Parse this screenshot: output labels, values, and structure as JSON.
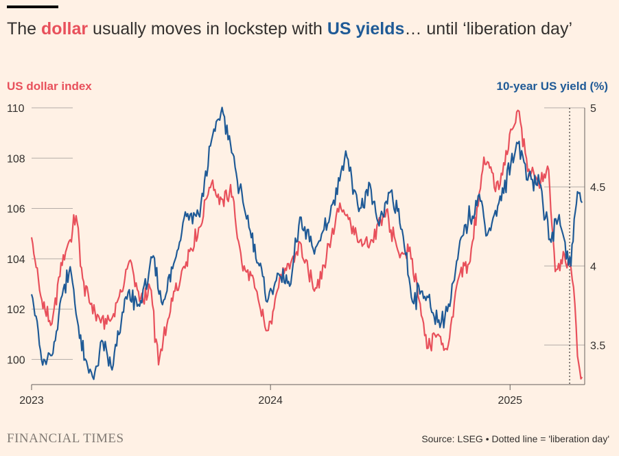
{
  "title": {
    "prefix": "The ",
    "highlight1": "dollar",
    "middle": " usually moves in lockstep with ",
    "highlight2": "US yields",
    "suffix": "… until ‘liberation day’"
  },
  "brand": "FINANCIAL TIMES",
  "source": "Source: LSEG • Dotted line = 'liberation day'",
  "colors": {
    "dollar": "#e8505b",
    "yield": "#1f5a96",
    "background": "#fff1e5",
    "grid": "#b3aca7"
  },
  "chart_data": {
    "type": "line",
    "x_axis": {
      "ticks": [
        "2023",
        "2024",
        "2025"
      ],
      "range": [
        "2023-01-01",
        "2025-04-25"
      ]
    },
    "left_axis": {
      "label": "US dollar index",
      "range": [
        99,
        110
      ],
      "ticks": [
        100,
        102,
        104,
        106,
        108,
        110
      ],
      "tick_labels": [
        "100",
        "102",
        "104",
        "106",
        "108",
        "110"
      ]
    },
    "right_axis": {
      "label": "10-year US yield (%)",
      "range": [
        3.25,
        5.0
      ],
      "ticks": [
        3.5,
        4.0,
        4.5,
        5.0
      ],
      "tick_labels": [
        "3.5",
        "4",
        "4.5",
        "5"
      ]
    },
    "annotation": {
      "type": "vertical-dotted-line",
      "date": "2025-04-02",
      "label": "liberation day"
    },
    "series": [
      {
        "name": "dollar",
        "axis": "left",
        "points": [
          [
            "2023-01-01",
            104.9
          ],
          [
            "2023-01-15",
            102.5
          ],
          [
            "2023-02-01",
            101.3
          ],
          [
            "2023-02-15",
            103.8
          ],
          [
            "2023-03-01",
            104.8
          ],
          [
            "2023-03-10",
            105.8
          ],
          [
            "2023-03-20",
            103.2
          ],
          [
            "2023-04-01",
            102.2
          ],
          [
            "2023-04-15",
            101.6
          ],
          [
            "2023-05-01",
            101.5
          ],
          [
            "2023-05-15",
            102.5
          ],
          [
            "2023-06-01",
            104.0
          ],
          [
            "2023-06-15",
            102.3
          ],
          [
            "2023-07-01",
            102.9
          ],
          [
            "2023-07-14",
            99.8
          ],
          [
            "2023-08-01",
            102.0
          ],
          [
            "2023-08-20",
            103.6
          ],
          [
            "2023-09-15",
            105.3
          ],
          [
            "2023-10-03",
            107.1
          ],
          [
            "2023-10-20",
            106.2
          ],
          [
            "2023-11-01",
            106.8
          ],
          [
            "2023-11-20",
            103.6
          ],
          [
            "2023-12-01",
            103.4
          ],
          [
            "2023-12-27",
            101.0
          ],
          [
            "2024-01-15",
            103.2
          ],
          [
            "2024-02-01",
            103.8
          ],
          [
            "2024-02-15",
            104.6
          ],
          [
            "2024-03-08",
            102.7
          ],
          [
            "2024-04-01",
            104.6
          ],
          [
            "2024-04-16",
            106.2
          ],
          [
            "2024-05-01",
            105.6
          ],
          [
            "2024-05-15",
            104.6
          ],
          [
            "2024-06-01",
            104.6
          ],
          [
            "2024-06-26",
            105.9
          ],
          [
            "2024-07-15",
            104.2
          ],
          [
            "2024-08-01",
            104.3
          ],
          [
            "2024-08-15",
            102.5
          ],
          [
            "2024-08-27",
            100.5
          ],
          [
            "2024-09-15",
            101.0
          ],
          [
            "2024-09-27",
            100.4
          ],
          [
            "2024-10-15",
            103.3
          ],
          [
            "2024-11-01",
            104.0
          ],
          [
            "2024-11-22",
            107.9
          ],
          [
            "2024-12-15",
            106.8
          ],
          [
            "2025-01-13",
            110.0
          ],
          [
            "2025-01-28",
            107.5
          ],
          [
            "2025-02-15",
            106.9
          ],
          [
            "2025-03-01",
            107.5
          ],
          [
            "2025-03-11",
            103.5
          ],
          [
            "2025-03-25",
            104.2
          ],
          [
            "2025-04-02",
            103.8
          ],
          [
            "2025-04-08",
            103.0
          ],
          [
            "2025-04-14",
            100.1
          ],
          [
            "2025-04-21",
            99.3
          ]
        ]
      },
      {
        "name": "10-year US yield",
        "axis": "right",
        "points": [
          [
            "2023-01-01",
            3.85
          ],
          [
            "2023-01-18",
            3.37
          ],
          [
            "2023-02-01",
            3.42
          ],
          [
            "2023-02-15",
            3.8
          ],
          [
            "2023-03-01",
            4.0
          ],
          [
            "2023-03-10",
            3.7
          ],
          [
            "2023-03-24",
            3.38
          ],
          [
            "2023-04-06",
            3.3
          ],
          [
            "2023-04-20",
            3.52
          ],
          [
            "2023-05-04",
            3.34
          ],
          [
            "2023-05-25",
            3.82
          ],
          [
            "2023-06-15",
            3.75
          ],
          [
            "2023-07-06",
            4.05
          ],
          [
            "2023-07-20",
            3.76
          ],
          [
            "2023-08-08",
            4.02
          ],
          [
            "2023-08-22",
            4.32
          ],
          [
            "2023-09-15",
            4.33
          ],
          [
            "2023-10-03",
            4.8
          ],
          [
            "2023-10-19",
            4.99
          ],
          [
            "2023-11-01",
            4.75
          ],
          [
            "2023-11-20",
            4.4
          ],
          [
            "2023-12-01",
            4.22
          ],
          [
            "2023-12-27",
            3.79
          ],
          [
            "2024-01-15",
            3.95
          ],
          [
            "2024-02-01",
            3.88
          ],
          [
            "2024-02-15",
            4.3
          ],
          [
            "2024-03-08",
            4.09
          ],
          [
            "2024-04-01",
            4.33
          ],
          [
            "2024-04-25",
            4.7
          ],
          [
            "2024-05-15",
            4.35
          ],
          [
            "2024-06-01",
            4.5
          ],
          [
            "2024-06-15",
            4.23
          ],
          [
            "2024-07-01",
            4.48
          ],
          [
            "2024-07-20",
            4.23
          ],
          [
            "2024-08-05",
            3.78
          ],
          [
            "2024-08-20",
            3.85
          ],
          [
            "2024-09-16",
            3.62
          ],
          [
            "2024-10-01",
            3.75
          ],
          [
            "2024-10-20",
            4.2
          ],
          [
            "2024-11-15",
            4.46
          ],
          [
            "2024-11-27",
            4.2
          ],
          [
            "2024-12-15",
            4.4
          ],
          [
            "2025-01-13",
            4.79
          ],
          [
            "2025-01-28",
            4.55
          ],
          [
            "2025-02-15",
            4.53
          ],
          [
            "2025-03-03",
            4.15
          ],
          [
            "2025-03-17",
            4.31
          ],
          [
            "2025-04-04",
            3.99
          ],
          [
            "2025-04-09",
            4.3
          ],
          [
            "2025-04-14",
            4.48
          ],
          [
            "2025-04-21",
            4.4
          ]
        ]
      }
    ]
  }
}
